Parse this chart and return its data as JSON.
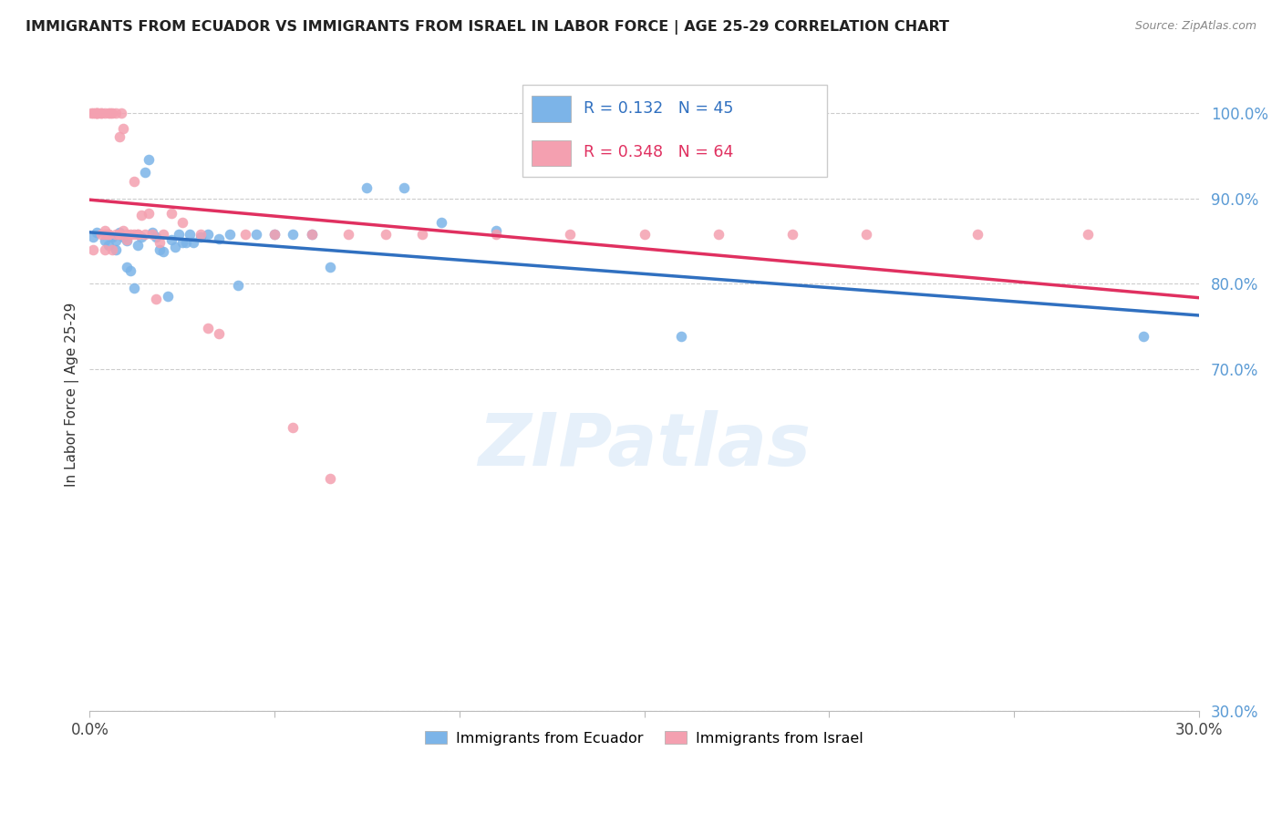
{
  "title": "IMMIGRANTS FROM ECUADOR VS IMMIGRANTS FROM ISRAEL IN LABOR FORCE | AGE 25-29 CORRELATION CHART",
  "source": "Source: ZipAtlas.com",
  "ylabel": "In Labor Force | Age 25-29",
  "xlim": [
    0.0,
    0.3
  ],
  "ylim": [
    0.3,
    1.04
  ],
  "yticks": [
    0.3,
    0.7,
    0.8,
    0.9,
    1.0
  ],
  "ytick_labels": [
    "30.0%",
    "70.0%",
    "80.0%",
    "90.0%",
    "100.0%"
  ],
  "xticks": [
    0.0,
    0.05,
    0.1,
    0.15,
    0.2,
    0.25,
    0.3
  ],
  "xtick_labels": [
    "0.0%",
    "",
    "",
    "",
    "",
    "",
    "30.0%"
  ],
  "ecuador_color": "#7cb4e8",
  "israel_color": "#f4a0b0",
  "ecuador_R": 0.132,
  "ecuador_N": 45,
  "israel_R": 0.348,
  "israel_N": 64,
  "legend_label_ecuador": "Immigrants from Ecuador",
  "legend_label_israel": "Immigrants from Israel",
  "ecuador_x": [
    0.001,
    0.002,
    0.004,
    0.005,
    0.006,
    0.007,
    0.007,
    0.008,
    0.009,
    0.01,
    0.01,
    0.011,
    0.012,
    0.013,
    0.014,
    0.015,
    0.016,
    0.017,
    0.018,
    0.019,
    0.02,
    0.021,
    0.022,
    0.023,
    0.024,
    0.025,
    0.026,
    0.027,
    0.028,
    0.03,
    0.032,
    0.035,
    0.038,
    0.04,
    0.045,
    0.05,
    0.055,
    0.06,
    0.065,
    0.075,
    0.085,
    0.095,
    0.11,
    0.16,
    0.285
  ],
  "ecuador_y": [
    0.855,
    0.86,
    0.85,
    0.845,
    0.855,
    0.85,
    0.84,
    0.86,
    0.855,
    0.85,
    0.82,
    0.815,
    0.795,
    0.845,
    0.855,
    0.93,
    0.945,
    0.86,
    0.855,
    0.84,
    0.838,
    0.785,
    0.852,
    0.843,
    0.858,
    0.848,
    0.848,
    0.858,
    0.848,
    0.855,
    0.858,
    0.853,
    0.858,
    0.798,
    0.858,
    0.858,
    0.858,
    0.858,
    0.82,
    0.912,
    0.912,
    0.872,
    0.862,
    0.738,
    0.738
  ],
  "israel_x": [
    0.0005,
    0.001,
    0.001,
    0.002,
    0.002,
    0.002,
    0.003,
    0.003,
    0.003,
    0.004,
    0.004,
    0.004,
    0.004,
    0.005,
    0.005,
    0.005,
    0.006,
    0.006,
    0.007,
    0.007,
    0.008,
    0.008,
    0.008,
    0.009,
    0.009,
    0.01,
    0.01,
    0.011,
    0.012,
    0.012,
    0.013,
    0.013,
    0.014,
    0.015,
    0.016,
    0.017,
    0.018,
    0.019,
    0.02,
    0.022,
    0.025,
    0.03,
    0.032,
    0.035,
    0.042,
    0.05,
    0.055,
    0.06,
    0.065,
    0.07,
    0.08,
    0.09,
    0.11,
    0.13,
    0.15,
    0.17,
    0.19,
    0.21,
    0.24,
    0.27,
    0.0015,
    0.0025,
    0.0055,
    0.0085
  ],
  "israel_y": [
    1.0,
    1.0,
    0.84,
    1.0,
    1.0,
    1.0,
    1.0,
    1.0,
    0.858,
    1.0,
    0.858,
    0.862,
    0.84,
    1.0,
    0.858,
    0.858,
    1.0,
    0.84,
    1.0,
    0.858,
    0.972,
    0.858,
    0.858,
    0.982,
    0.862,
    0.852,
    0.858,
    0.858,
    0.92,
    0.858,
    0.858,
    0.858,
    0.88,
    0.858,
    0.882,
    0.858,
    0.782,
    0.848,
    0.858,
    0.882,
    0.872,
    0.858,
    0.748,
    0.742,
    0.858,
    0.858,
    0.632,
    0.858,
    0.572,
    0.858,
    0.858,
    0.858,
    0.858,
    0.858,
    0.858,
    0.858,
    0.858,
    0.858,
    0.858,
    0.858,
    1.0,
    1.0,
    1.0,
    1.0
  ]
}
